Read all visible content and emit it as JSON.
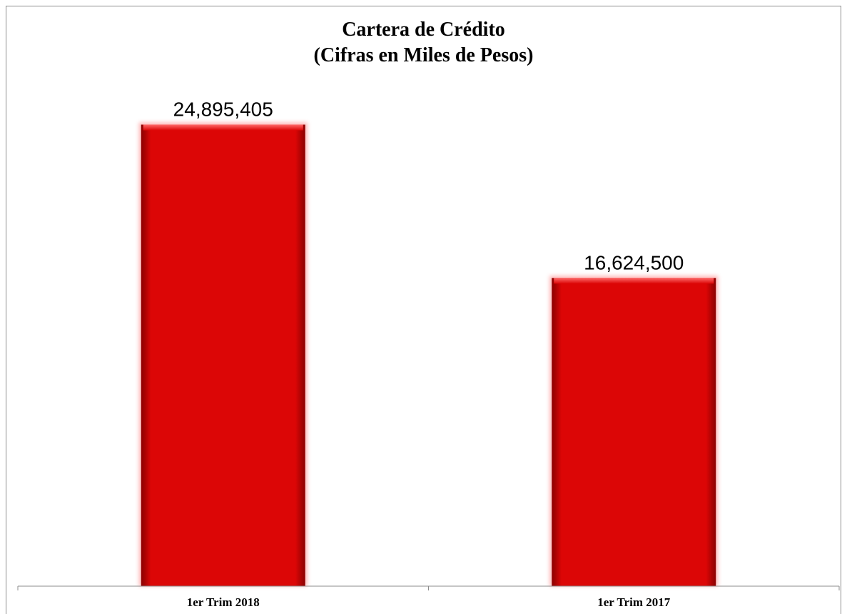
{
  "chart_data": {
    "type": "bar",
    "title": "Cartera de Crédito",
    "subtitle": "(Cifras en Miles de Pesos)",
    "categories": [
      "1er Trim 2018",
      "1er Trim 2017"
    ],
    "values": [
      24895405,
      16624500
    ],
    "data_labels": [
      "24,895,405",
      "16,624,500"
    ],
    "ylim": [
      0,
      30000000
    ],
    "grid": false,
    "legend": "none",
    "colors": {
      "bar": "#dc0606",
      "bar_dark": "#8a0000",
      "axis": "#8c8c8c"
    }
  }
}
